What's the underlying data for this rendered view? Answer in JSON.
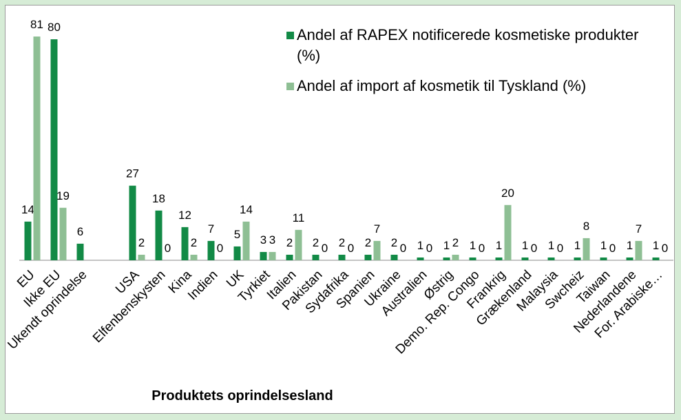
{
  "chart_data": {
    "type": "bar",
    "x_label": "Produktets oprindelsesland",
    "categories": [
      "EU",
      "Ikke EU",
      "Ukendt oprindelse",
      null,
      "USA",
      "Elfenbenskysten",
      "Kina",
      "Indien",
      "UK",
      "Tyrkiet",
      "Italien",
      "Pakistan",
      "Sydafrika",
      "Spanien",
      "Ukraine",
      "Australien",
      "Østrig",
      "Demo. Rep. Congo",
      "Frankrig",
      "Grækenland",
      "Malaysia",
      "Swcheiz",
      "Taiwan",
      "Nederlandene",
      "For. Arabiske…"
    ],
    "series": [
      {
        "name": "Andel af RAPEX notificerede kosmetiske produkter (%)",
        "color": "#128a46",
        "values": [
          14,
          80,
          6,
          null,
          27,
          18,
          12,
          7,
          5,
          3,
          2,
          2,
          2,
          2,
          2,
          1,
          1,
          1,
          1,
          1,
          1,
          1,
          1,
          1,
          1
        ]
      },
      {
        "name": "Andel af import af kosmetik til Tyskland (%)",
        "color": "#8ebf94",
        "values": [
          81,
          19,
          null,
          null,
          2,
          0,
          2,
          0,
          14,
          3,
          11,
          0,
          0,
          7,
          0,
          0,
          2,
          0,
          20,
          0,
          0,
          8,
          0,
          7,
          0
        ]
      }
    ],
    "ylim": [
      0,
      85
    ],
    "legend": "top-right"
  }
}
